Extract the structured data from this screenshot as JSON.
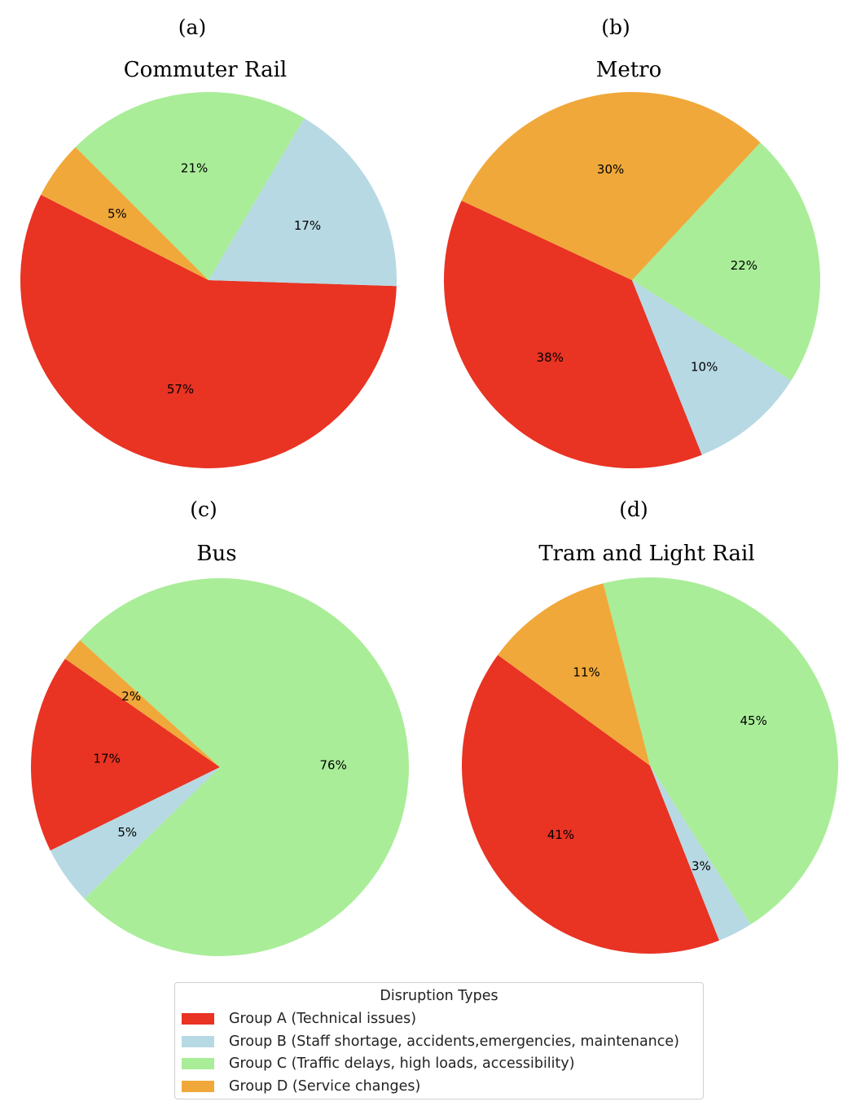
{
  "colors": {
    "group_a": "#E93323",
    "group_b": "#B7D9E3",
    "group_c": "#A9ED98",
    "group_d": "#F0A83A"
  },
  "chart_data": [
    {
      "type": "pie",
      "panel": "(a)",
      "title": "Commuter Rail",
      "slices": [
        {
          "group": "group_a",
          "value": 57,
          "label": "57%"
        },
        {
          "group": "group_b",
          "value": 17,
          "label": "17%"
        },
        {
          "group": "group_c",
          "value": 21,
          "label": "21%"
        },
        {
          "group": "group_d",
          "value": 5,
          "label": "5%"
        }
      ]
    },
    {
      "type": "pie",
      "panel": "(b)",
      "title": "Metro",
      "slices": [
        {
          "group": "group_a",
          "value": 38,
          "label": "38%"
        },
        {
          "group": "group_b",
          "value": 10,
          "label": "10%"
        },
        {
          "group": "group_c",
          "value": 22,
          "label": "22%"
        },
        {
          "group": "group_d",
          "value": 30,
          "label": "30%"
        }
      ]
    },
    {
      "type": "pie",
      "panel": "(c)",
      "title": "Bus",
      "slices": [
        {
          "group": "group_a",
          "value": 17,
          "label": "17%"
        },
        {
          "group": "group_b",
          "value": 5,
          "label": "5%"
        },
        {
          "group": "group_c",
          "value": 76,
          "label": "76%"
        },
        {
          "group": "group_d",
          "value": 2,
          "label": "2%"
        }
      ]
    },
    {
      "type": "pie",
      "panel": "(d)",
      "title": "Tram and Light Rail",
      "slices": [
        {
          "group": "group_a",
          "value": 41,
          "label": "41%"
        },
        {
          "group": "group_b",
          "value": 3,
          "label": "3%"
        },
        {
          "group": "group_c",
          "value": 45,
          "label": "45%"
        },
        {
          "group": "group_d",
          "value": 11,
          "label": "11%"
        }
      ]
    }
  ],
  "legend": {
    "title": "Disruption Types",
    "placement": "bottom-center",
    "entries": [
      {
        "group": "group_a",
        "label": "Group A (Technical issues)"
      },
      {
        "group": "group_b",
        "label": "Group B (Staff shortage, accidents,emergencies, maintenance)"
      },
      {
        "group": "group_c",
        "label": "Group C (Traffic delays, high loads, accessibility)"
      },
      {
        "group": "group_d",
        "label": "Group D (Service changes)"
      }
    ]
  }
}
